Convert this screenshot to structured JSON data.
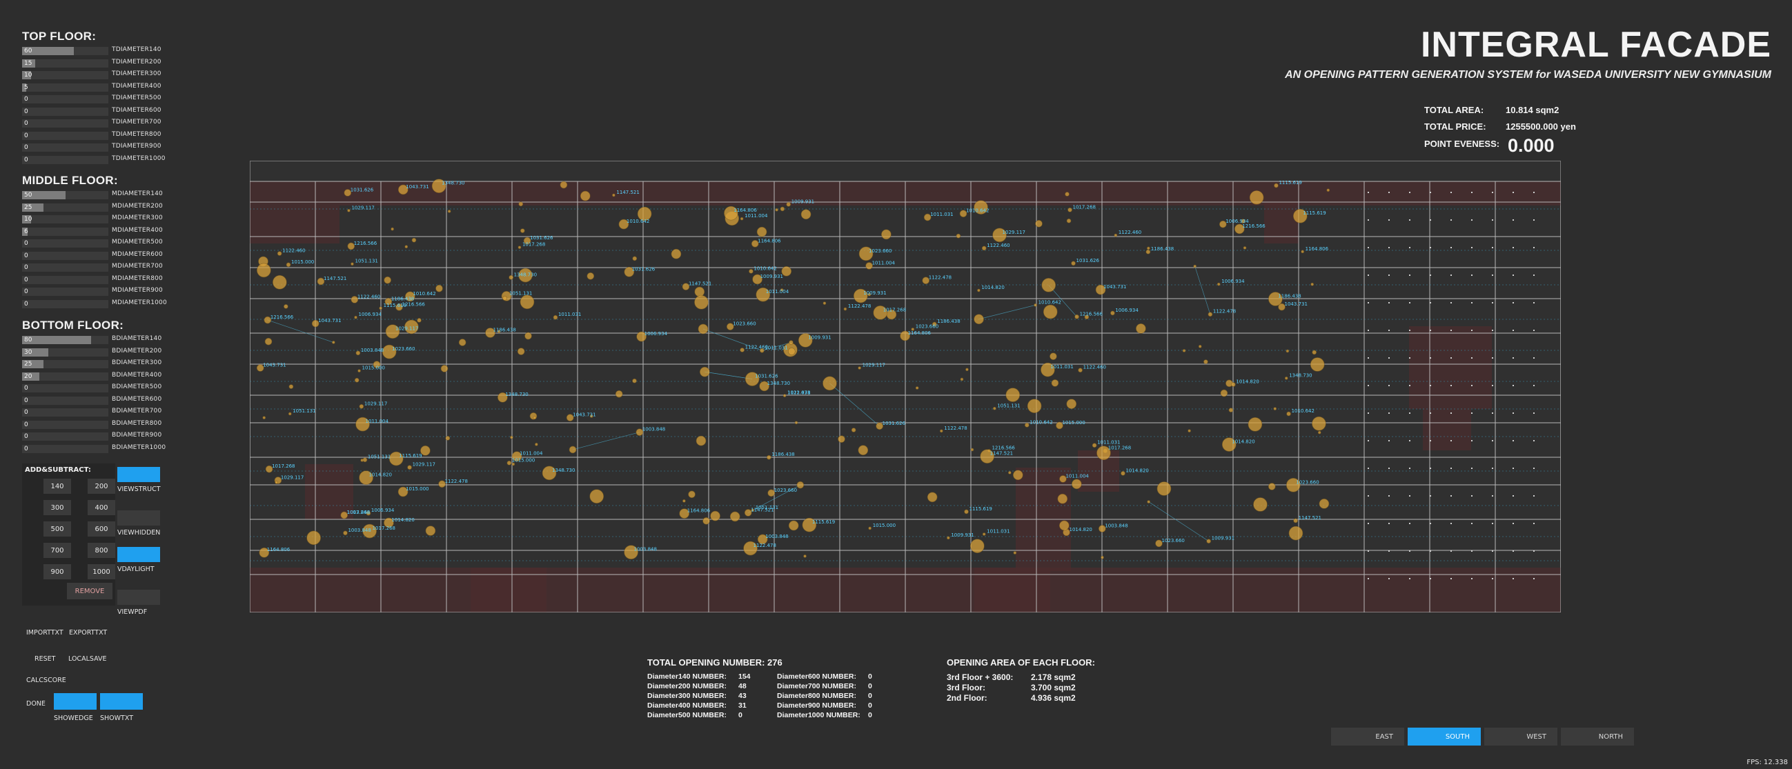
{
  "floors": [
    {
      "title": "TOP FLOOR:",
      "rows": [
        {
          "value": "60",
          "label": "TDIAMETER140",
          "fill": 0.6
        },
        {
          "value": "15",
          "label": "TDIAMETER200",
          "fill": 0.15
        },
        {
          "value": "10",
          "label": "TDIAMETER300",
          "fill": 0.1
        },
        {
          "value": "5",
          "label": "TDIAMETER400",
          "fill": 0.05
        },
        {
          "value": "0",
          "label": "TDIAMETER500",
          "fill": 0
        },
        {
          "value": "0",
          "label": "TDIAMETER600",
          "fill": 0
        },
        {
          "value": "0",
          "label": "TDIAMETER700",
          "fill": 0
        },
        {
          "value": "0",
          "label": "TDIAMETER800",
          "fill": 0
        },
        {
          "value": "0",
          "label": "TDIAMETER900",
          "fill": 0
        },
        {
          "value": "0",
          "label": "TDIAMETER1000",
          "fill": 0
        }
      ]
    },
    {
      "title": "MIDDLE FLOOR:",
      "rows": [
        {
          "value": "50",
          "label": "MDIAMETER140",
          "fill": 0.5
        },
        {
          "value": "25",
          "label": "MDIAMETER200",
          "fill": 0.25
        },
        {
          "value": "10",
          "label": "MDIAMETER300",
          "fill": 0.1
        },
        {
          "value": "6",
          "label": "MDIAMETER400",
          "fill": 0.06
        },
        {
          "value": "0",
          "label": "MDIAMETER500",
          "fill": 0
        },
        {
          "value": "0",
          "label": "MDIAMETER600",
          "fill": 0
        },
        {
          "value": "0",
          "label": "MDIAMETER700",
          "fill": 0
        },
        {
          "value": "0",
          "label": "MDIAMETER800",
          "fill": 0
        },
        {
          "value": "0",
          "label": "MDIAMETER900",
          "fill": 0
        },
        {
          "value": "0",
          "label": "MDIAMETER1000",
          "fill": 0
        }
      ]
    },
    {
      "title": "BOTTOM FLOOR:",
      "rows": [
        {
          "value": "80",
          "label": "BDIAMETER140",
          "fill": 0.8
        },
        {
          "value": "30",
          "label": "BDIAMETER200",
          "fill": 0.3
        },
        {
          "value": "25",
          "label": "BDIAMETER300",
          "fill": 0.25
        },
        {
          "value": "20",
          "label": "BDIAMETER400",
          "fill": 0.2
        },
        {
          "value": "0",
          "label": "BDIAMETER500",
          "fill": 0
        },
        {
          "value": "0",
          "label": "BDIAMETER600",
          "fill": 0
        },
        {
          "value": "0",
          "label": "BDIAMETER700",
          "fill": 0
        },
        {
          "value": "0",
          "label": "BDIAMETER800",
          "fill": 0
        },
        {
          "value": "0",
          "label": "BDIAMETER900",
          "fill": 0
        },
        {
          "value": "0",
          "label": "BDIAMETER1000",
          "fill": 0
        }
      ]
    }
  ],
  "addsub": {
    "title": "ADD&SUBTRACT:",
    "buttons": [
      "140",
      "200",
      "300",
      "400",
      "500",
      "600",
      "700",
      "800",
      "900",
      "1000"
    ],
    "remove": "REMOVE"
  },
  "views": {
    "struct": "VIEWSTRUCT",
    "hidden": "VIEWHIDDEN",
    "daylight": "VDAYLIGHT",
    "pdf": "VIEWPDF"
  },
  "actions": {
    "import": "IMPORTTXT",
    "export": "EXPORTTXT",
    "reset": "RESET",
    "localsave": "LOCALSAVE",
    "calcscore": "CALCSCORE",
    "done": "DONE",
    "showedge": "SHOWEDGE",
    "showtxt": "SHOWTXT"
  },
  "header": {
    "title": "INTEGRAL FACADE",
    "subtitle": "AN OPENING PATTERN GENERATION SYSTEM for WASEDA UNIVERSITY NEW GYMNASIUM"
  },
  "totals": {
    "area_label": "TOTAL AREA:",
    "area_value": "10.814 sqm2",
    "price_label": "TOTAL PRICE:",
    "price_value": "1255500.000 yen",
    "evenness_label": "POINT EVENESS:",
    "evenness_value": "0.000"
  },
  "opening_numbers": {
    "title": "TOTAL OPENING NUMBER: 276",
    "left": [
      {
        "label": "Diameter140 NUMBER:",
        "value": "154"
      },
      {
        "label": "Diameter200 NUMBER:",
        "value": "48"
      },
      {
        "label": "Diameter300 NUMBER:",
        "value": "43"
      },
      {
        "label": "Diameter400 NUMBER:",
        "value": "31"
      },
      {
        "label": "Diameter500 NUMBER:",
        "value": "0"
      }
    ],
    "right": [
      {
        "label": "Diameter600 NUMBER:",
        "value": "0"
      },
      {
        "label": "Diameter700 NUMBER:",
        "value": "0"
      },
      {
        "label": "Diameter800 NUMBER:",
        "value": "0"
      },
      {
        "label": "Diameter900 NUMBER:",
        "value": "0"
      },
      {
        "label": "Diameter1000 NUMBER:",
        "value": "0"
      }
    ]
  },
  "floor_areas": {
    "title": "OPENING AREA OF EACH FLOOR:",
    "rows": [
      {
        "label": "3rd Floor + 3600:",
        "value": "2.178 sqm2"
      },
      {
        "label": "3rd Floor:",
        "value": "3.700 sqm2"
      },
      {
        "label": "2nd Floor:",
        "value": "4.936 sqm2"
      }
    ]
  },
  "directions": [
    {
      "label": "EAST",
      "active": false
    },
    {
      "label": "SOUTH",
      "active": true
    },
    {
      "label": "WEST",
      "active": false
    },
    {
      "label": "NORTH",
      "active": false
    }
  ],
  "fps": "FPS: 12.338",
  "colors": {
    "accent": "#1fa0ef",
    "background": "#2d2d2d",
    "circle": "#d9a23a",
    "annotation": "#5ad2ff",
    "panel_red": "#4a2a2a"
  },
  "facade_labels": [
    "1011.031",
    "1017.268",
    "1010.642",
    "1029.117",
    "1023.660",
    "1014.820",
    "1122.478",
    "1003.848",
    "1164.806",
    "1011.004",
    "1043.731",
    "1122.460",
    "1348.730",
    "1015.000",
    "1186.438",
    "1216.566",
    "1147.521",
    "1006.934",
    "1115.619",
    "1031.626",
    "1009.931",
    "1051.131"
  ]
}
